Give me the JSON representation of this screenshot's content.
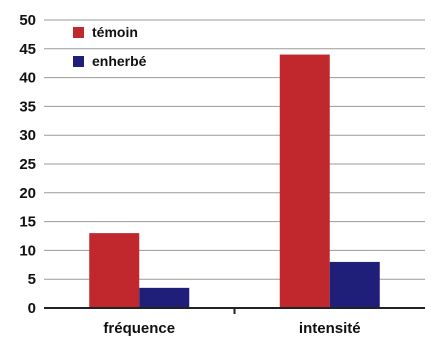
{
  "chart_data": {
    "type": "bar",
    "categories": [
      "fréquence",
      "intensité"
    ],
    "series": [
      {
        "name": "témoin",
        "values": [
          13,
          44
        ],
        "color": "#c0282d"
      },
      {
        "name": "enherbé",
        "values": [
          3.5,
          8
        ],
        "color": "#1f1f7a"
      }
    ],
    "yticks": [
      0,
      5,
      10,
      15,
      20,
      25,
      30,
      35,
      40,
      45,
      50
    ],
    "ylim": [
      0,
      50
    ],
    "grid": true,
    "legend_position": "top-left"
  }
}
